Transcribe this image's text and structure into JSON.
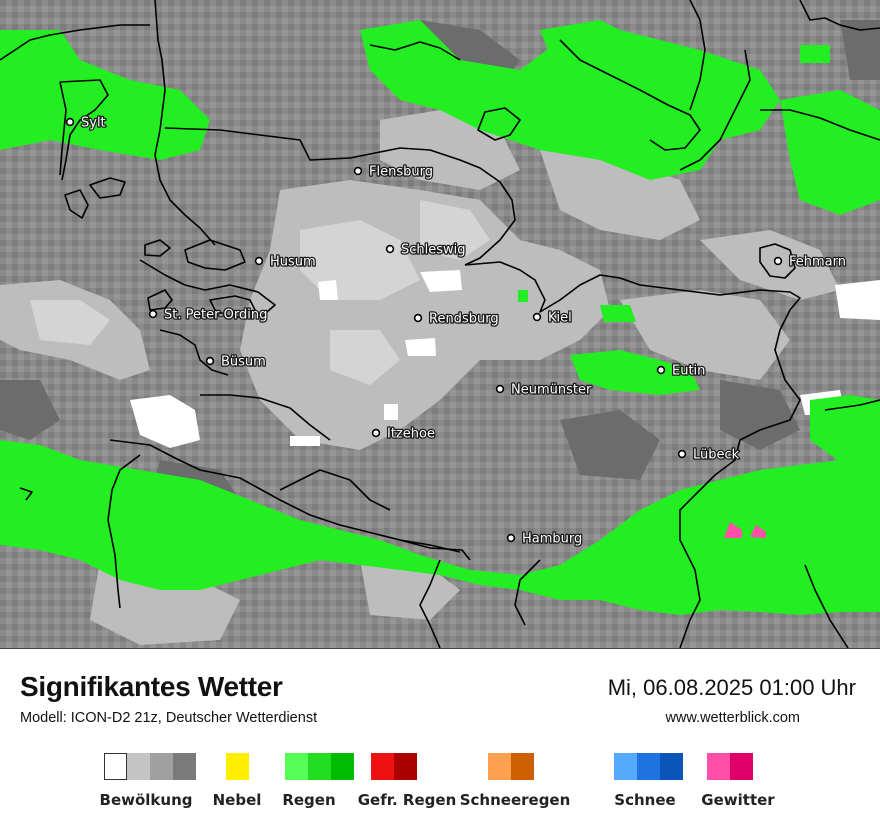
{
  "title": "Signifikantes Wetter",
  "subtitle": "Modell: ICON-D2 21z, Deutscher Wetterdienst",
  "datetime": "Mi, 06.08.2025 01:00 Uhr",
  "website": "www.wetterblick.com",
  "cities": [
    {
      "name": "Sylt"
    },
    {
      "name": "Flensburg"
    },
    {
      "name": "Schleswig"
    },
    {
      "name": "Husum"
    },
    {
      "name": "Fehmarn"
    },
    {
      "name": "St. Peter-Ording"
    },
    {
      "name": "Rendsburg"
    },
    {
      "name": "Kiel"
    },
    {
      "name": "Büsum"
    },
    {
      "name": "Eutin"
    },
    {
      "name": "Neumünster"
    },
    {
      "name": "Itzehoe"
    },
    {
      "name": "Lübeck"
    },
    {
      "name": "Hamburg"
    }
  ],
  "colors": {
    "cloud_1": "#ffffff",
    "cloud_2": "#c4c4c4",
    "cloud_3": "#a0a0a0",
    "cloud_4": "#7a7a7a",
    "fog": "#ffee00",
    "rain": [
      "#55ff55",
      "#22dd22",
      "#00bb00"
    ],
    "freezing_rain": [
      "#ee1111",
      "#aa0000"
    ],
    "sleet": [
      "#ffa050",
      "#cc5f00"
    ],
    "snow": [
      "#55aaff",
      "#1f73e0",
      "#0b55b8"
    ],
    "thunderstorm": [
      "#ff4fa8",
      "#e0006a"
    ]
  },
  "legend": [
    {
      "label": "Bewölkung",
      "colors": [
        "#ffffff",
        "#c4c4c4",
        "#a0a0a0",
        "#7a7a7a"
      ]
    },
    {
      "label": "Nebel",
      "colors": [
        "#ffee00"
      ]
    },
    {
      "label": "Regen",
      "colors": [
        "#55ff55",
        "#22dd22",
        "#00bb00"
      ]
    },
    {
      "label": "Gefr. Regen",
      "colors": [
        "#ee1111",
        "#aa0000"
      ]
    },
    {
      "label": "Schneeregen",
      "colors": [
        "#ffa050",
        "#cc5f00"
      ]
    },
    {
      "label": "Schnee",
      "colors": [
        "#55aaff",
        "#1f73e0",
        "#0b55b8"
      ]
    },
    {
      "label": "Gewitter",
      "colors": [
        "#ff4fa8",
        "#e0006a"
      ]
    }
  ]
}
